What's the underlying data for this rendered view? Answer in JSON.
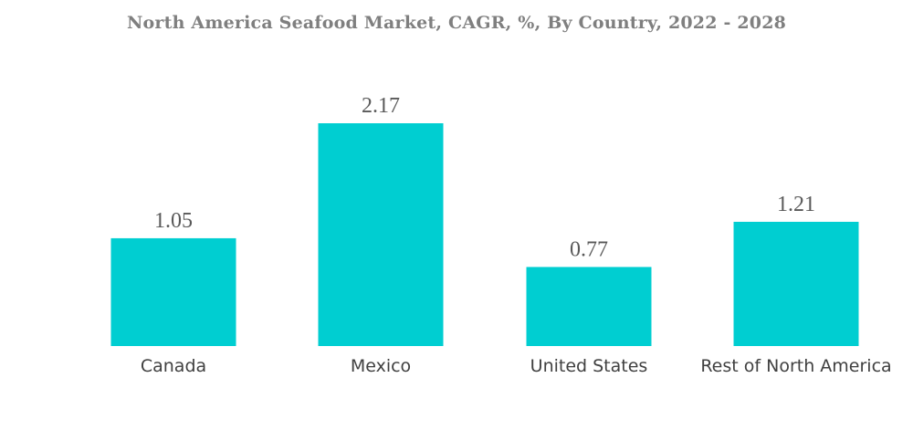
{
  "chart_data": {
    "type": "bar",
    "title": "North America Seafood Market, CAGR, %, By Country, 2022 - 2028",
    "categories": [
      "Canada",
      "Mexico",
      "United States",
      "Rest of North America"
    ],
    "values": [
      1.05,
      2.17,
      0.77,
      1.21
    ],
    "value_labels": [
      "1.05",
      "2.17",
      "0.77",
      "1.21"
    ],
    "xlabel": "",
    "ylabel": "",
    "ylim": [
      0,
      2.17
    ],
    "grid": false,
    "legend": "none",
    "bar_color": "#00ced1"
  }
}
